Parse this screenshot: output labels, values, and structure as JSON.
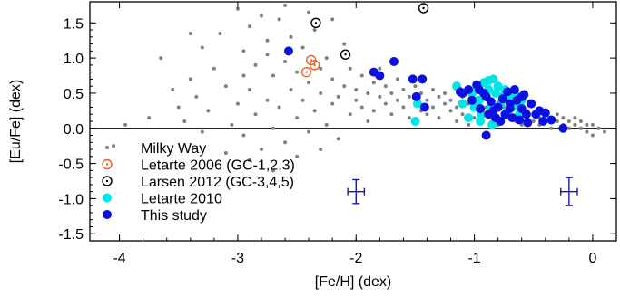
{
  "chart_data": {
    "type": "scatter",
    "xlabel": "[Fe/H] (dex)",
    "ylabel": "[Eu/Fe] (dex)",
    "xlim": [
      -4.25,
      0.2
    ],
    "ylim": [
      -1.6,
      1.8
    ],
    "xticks": [
      -4,
      -3,
      -2,
      -1,
      0
    ],
    "yticks": [
      -1.5,
      -1.0,
      -0.5,
      0.0,
      0.5,
      1.0,
      1.5
    ],
    "grid": false,
    "zero_line": 0.0,
    "legend_position": "bottom-left",
    "colors": {
      "milky_way": "#808080",
      "letarte2006": "#e8602c",
      "larsen2012": "#000000",
      "letarte2010": "#00e5e5",
      "this_study": "#0a10e0",
      "error_bar": "#1414b4"
    },
    "series": [
      {
        "name": "Milky Way",
        "marker": "small-dot",
        "points": [
          [
            -4.05,
            -0.25
          ],
          [
            -3.95,
            0.05
          ],
          [
            -3.75,
            0.15
          ],
          [
            -3.65,
            1.0
          ],
          [
            -3.55,
            0.55
          ],
          [
            -3.5,
            0.3
          ],
          [
            -3.45,
            0.1
          ],
          [
            -3.4,
            0.7
          ],
          [
            -3.35,
            0.45
          ],
          [
            -3.3,
            1.15
          ],
          [
            -3.25,
            0.25
          ],
          [
            -3.2,
            0.85
          ],
          [
            -3.15,
            1.35
          ],
          [
            -3.1,
            0.6
          ],
          [
            -3.05,
            0.05
          ],
          [
            -3.0,
            1.7
          ],
          [
            -3.0,
            0.35
          ],
          [
            -2.95,
            -0.1
          ],
          [
            -2.95,
            1.1
          ],
          [
            -2.9,
            0.55
          ],
          [
            -2.9,
            1.45
          ],
          [
            -2.85,
            0.2
          ],
          [
            -2.85,
            0.9
          ],
          [
            -2.8,
            1.6
          ],
          [
            -2.8,
            -0.3
          ],
          [
            -2.75,
            0.4
          ],
          [
            -2.75,
            1.25
          ],
          [
            -2.7,
            0.75
          ],
          [
            -2.7,
            0.0
          ],
          [
            -2.65,
            1.55
          ],
          [
            -2.65,
            0.3
          ],
          [
            -2.6,
            0.95
          ],
          [
            -2.6,
            -0.2
          ],
          [
            -2.55,
            0.55
          ],
          [
            -2.55,
            1.3
          ],
          [
            -2.5,
            0.15
          ],
          [
            -2.5,
            0.8
          ],
          [
            -2.45,
            1.15
          ],
          [
            -2.45,
            0.4
          ],
          [
            -2.4,
            0.65
          ],
          [
            -2.4,
            -0.05
          ],
          [
            -2.35,
            1.4
          ],
          [
            -2.35,
            0.25
          ],
          [
            -2.3,
            0.85
          ],
          [
            -2.3,
            0.5
          ],
          [
            -2.25,
            0.05
          ],
          [
            -2.25,
            1.0
          ],
          [
            -2.2,
            0.35
          ],
          [
            -2.2,
            0.7
          ],
          [
            -2.15,
            -0.15
          ],
          [
            -2.15,
            0.45
          ],
          [
            -2.1,
            0.6
          ],
          [
            -2.1,
            1.2
          ],
          [
            -2.05,
            0.2
          ],
          [
            -2.05,
            0.85
          ],
          [
            -2.0,
            0.4
          ],
          [
            -2.0,
            0.55
          ],
          [
            -1.95,
            0.3
          ],
          [
            -1.95,
            0.75
          ],
          [
            -1.9,
            0.1
          ],
          [
            -1.9,
            0.5
          ],
          [
            -1.85,
            0.65
          ],
          [
            -1.85,
            0.25
          ],
          [
            -1.8,
            0.45
          ],
          [
            -1.8,
            0.85
          ],
          [
            -1.75,
            0.35
          ],
          [
            -1.75,
            0.6
          ],
          [
            -1.7,
            0.2
          ],
          [
            -1.7,
            0.5
          ],
          [
            -1.65,
            0.4
          ],
          [
            -1.65,
            0.7
          ],
          [
            -1.6,
            0.3
          ],
          [
            -1.6,
            0.55
          ],
          [
            -1.55,
            0.45
          ],
          [
            -1.55,
            0.15
          ],
          [
            -1.5,
            0.35
          ],
          [
            -1.5,
            0.6
          ],
          [
            -1.45,
            0.25
          ],
          [
            -1.45,
            0.5
          ],
          [
            -1.4,
            0.4
          ],
          [
            -1.4,
            0.2
          ],
          [
            -1.35,
            0.55
          ],
          [
            -1.35,
            0.3
          ],
          [
            -1.3,
            0.45
          ],
          [
            -1.3,
            0.15
          ],
          [
            -1.25,
            0.35
          ],
          [
            -1.25,
            0.5
          ],
          [
            -1.2,
            0.25
          ],
          [
            -1.2,
            0.4
          ],
          [
            -1.15,
            0.3
          ],
          [
            -1.15,
            0.1
          ],
          [
            -1.1,
            0.45
          ],
          [
            -1.1,
            0.2
          ],
          [
            -1.05,
            0.35
          ],
          [
            -1.05,
            0.05
          ],
          [
            -1.0,
            0.3
          ],
          [
            -1.0,
            0.15
          ],
          [
            -0.95,
            0.4
          ],
          [
            -0.95,
            0.2
          ],
          [
            -0.9,
            0.3
          ],
          [
            -0.85,
            0.1
          ],
          [
            -0.85,
            0.25
          ],
          [
            -0.8,
            0.35
          ],
          [
            -0.8,
            0.05
          ],
          [
            -0.75,
            0.2
          ],
          [
            -0.75,
            0.3
          ],
          [
            -0.7,
            0.15
          ],
          [
            -0.7,
            0.25
          ],
          [
            -0.65,
            0.1
          ],
          [
            -0.65,
            0.3
          ],
          [
            -0.6,
            0.2
          ],
          [
            -0.6,
            0.05
          ],
          [
            -0.55,
            0.15
          ],
          [
            -0.55,
            0.25
          ],
          [
            -0.5,
            0.1
          ],
          [
            -0.5,
            0.2
          ],
          [
            -0.45,
            0.15
          ],
          [
            -0.45,
            0.05
          ],
          [
            -0.4,
            0.2
          ],
          [
            -0.4,
            0.1
          ],
          [
            -0.35,
            0.15
          ],
          [
            -0.35,
            0.0
          ],
          [
            -0.3,
            0.1
          ],
          [
            -0.3,
            0.2
          ],
          [
            -0.25,
            0.05
          ],
          [
            -0.25,
            0.15
          ],
          [
            -0.2,
            0.1
          ],
          [
            -0.2,
            0.0
          ],
          [
            -0.15,
            0.05
          ],
          [
            -0.15,
            0.15
          ],
          [
            -0.1,
            0.0
          ],
          [
            -0.1,
            0.1
          ],
          [
            -0.05,
            0.05
          ],
          [
            -0.05,
            -0.05
          ],
          [
            0.0,
            0.05
          ],
          [
            0.0,
            -0.1
          ],
          [
            0.05,
            0.0
          ],
          [
            0.1,
            -0.05
          ],
          [
            -2.9,
            -0.45
          ],
          [
            -2.7,
            -0.6
          ],
          [
            -3.1,
            -0.35
          ],
          [
            -2.5,
            -0.4
          ],
          [
            -2.3,
            -0.3
          ],
          [
            -3.3,
            -0.05
          ],
          [
            -2.95,
            0.75
          ],
          [
            -2.6,
            1.75
          ],
          [
            -2.4,
            1.65
          ],
          [
            -2.2,
            1.55
          ],
          [
            -3.4,
            1.35
          ],
          [
            -2.75,
            1.05
          ]
        ]
      },
      {
        "name": "Letarte 2006 (GC-1,2,3)",
        "marker": "open-circle-dot",
        "points": [
          [
            -2.38,
            0.97
          ],
          [
            -2.35,
            0.9
          ],
          [
            -2.42,
            0.8
          ]
        ]
      },
      {
        "name": "Larsen 2012 (GC-3,4,5)",
        "marker": "open-circle-dot",
        "points": [
          [
            -2.34,
            1.5
          ],
          [
            -2.09,
            1.05
          ],
          [
            -1.43,
            1.71
          ]
        ]
      },
      {
        "name": "Letarte 2010",
        "marker": "filled-circle",
        "points": [
          [
            -1.15,
            0.6
          ],
          [
            -1.1,
            0.35
          ],
          [
            -1.05,
            0.15
          ],
          [
            -1.02,
            0.5
          ],
          [
            -1.0,
            0.3
          ],
          [
            -0.98,
            0.6
          ],
          [
            -0.96,
            0.4
          ],
          [
            -0.94,
            0.2
          ],
          [
            -0.92,
            0.65
          ],
          [
            -0.9,
            0.45
          ],
          [
            -0.88,
            0.55
          ],
          [
            -0.86,
            0.3
          ],
          [
            -0.84,
            0.7
          ],
          [
            -0.82,
            0.5
          ],
          [
            -0.8,
            0.6
          ],
          [
            -0.78,
            0.35
          ],
          [
            -0.76,
            0.45
          ],
          [
            -0.74,
            0.55
          ],
          [
            -0.72,
            0.25
          ],
          [
            -0.7,
            0.4
          ],
          [
            -0.68,
            0.3
          ],
          [
            -0.66,
            0.5
          ],
          [
            -0.64,
            0.35
          ],
          [
            -0.62,
            0.2
          ],
          [
            -0.6,
            0.4
          ],
          [
            -0.95,
            0.1
          ],
          [
            -0.85,
            0.05
          ],
          [
            -1.5,
            0.1
          ],
          [
            -1.48,
            0.35
          ],
          [
            -0.88,
            0.68
          ]
        ]
      },
      {
        "name": "This study",
        "marker": "filled-circle",
        "points": [
          [
            -2.57,
            1.1
          ],
          [
            -1.85,
            0.8
          ],
          [
            -1.8,
            0.75
          ],
          [
            -1.68,
            0.95
          ],
          [
            -1.52,
            0.7
          ],
          [
            -1.49,
            0.45
          ],
          [
            -1.44,
            0.7
          ],
          [
            -1.42,
            0.3
          ],
          [
            -1.1,
            0.5
          ],
          [
            -1.05,
            0.55
          ],
          [
            -1.02,
            0.4
          ],
          [
            -0.98,
            0.62
          ],
          [
            -0.95,
            0.28
          ],
          [
            -0.92,
            0.5
          ],
          [
            -0.9,
            0.45
          ],
          [
            -0.88,
            0.2
          ],
          [
            -0.86,
            0.38
          ],
          [
            -0.84,
            0.25
          ],
          [
            -0.82,
            0.15
          ],
          [
            -0.8,
            0.3
          ],
          [
            -0.78,
            0.1
          ],
          [
            -0.76,
            0.42
          ],
          [
            -0.74,
            0.2
          ],
          [
            -0.72,
            0.52
          ],
          [
            -0.7,
            0.35
          ],
          [
            -0.68,
            0.15
          ],
          [
            -0.66,
            0.55
          ],
          [
            -0.64,
            0.4
          ],
          [
            -0.62,
            0.12
          ],
          [
            -0.6,
            0.28
          ],
          [
            -0.58,
            0.48
          ],
          [
            -0.56,
            0.2
          ],
          [
            -0.55,
            0.08
          ],
          [
            -0.52,
            0.35
          ],
          [
            -0.48,
            0.2
          ],
          [
            -0.45,
            0.25
          ],
          [
            -0.42,
            0.1
          ],
          [
            -0.4,
            0.22
          ],
          [
            -0.35,
            0.12
          ],
          [
            -0.25,
            0.0
          ],
          [
            -0.9,
            -0.1
          ],
          [
            -0.7,
            0.28
          ],
          [
            -0.6,
            0.45
          ],
          [
            -1.12,
            0.52
          ],
          [
            -0.96,
            0.55
          ]
        ]
      }
    ],
    "error_bars": [
      {
        "x": -2.0,
        "y": -0.9,
        "xerr": 0.07,
        "yerr": 0.17
      },
      {
        "x": -0.2,
        "y": -0.9,
        "xerr": 0.07,
        "yerr": 0.2
      }
    ]
  }
}
